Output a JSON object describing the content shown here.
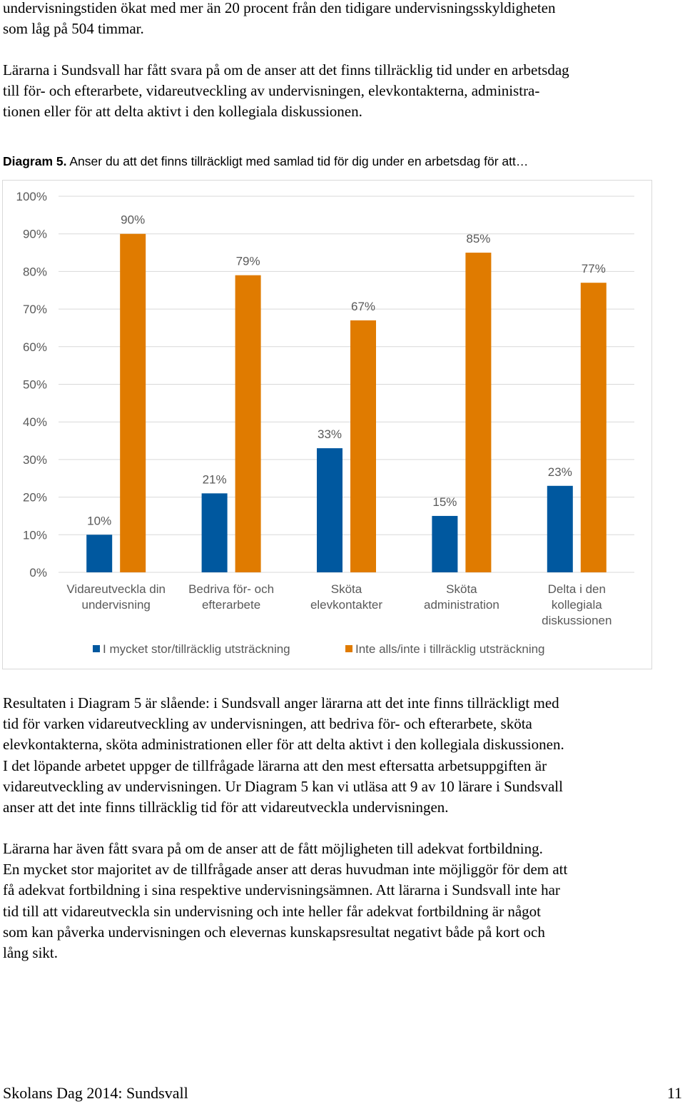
{
  "paragraphs": {
    "intro": "undervisningstiden ökat med mer än 20 procent från den tidigare undervisningsskyldigheten\nsom låg på 504 timmar.",
    "p2": "Lärarna i Sundsvall har fått svara på om de anser att det finns tillräcklig tid under en arbetsdag\ntill för- och efterarbete, vidareutveckling av undervisningen, elevkontakterna, administra-\ntionen eller för att delta aktivt i den kollegiala diskussionen.",
    "p3": "Resultaten i Diagram 5 är slående: i Sundsvall anger lärarna att det inte finns tillräckligt med\ntid för varken vidareutveckling av undervisningen, att bedriva för- och efterarbete, sköta\nelevkontakterna, sköta administrationen eller för att delta aktivt i den kollegiala diskussionen.\nI det löpande arbetet uppger de tillfrågade lärarna att den mest eftersatta arbetsuppgiften är\nvidareutveckling av undervisningen. Ur Diagram 5 kan vi utläsa att 9 av 10 lärare i Sundsvall\nanser att det inte finns tillräcklig tid för att vidareutveckla undervisningen.",
    "p4": "Lärarna har även fått svara på om de anser att de fått möjligheten till adekvat fortbildning.\nEn mycket stor majoritet av de tillfrågade anser att deras huvudman inte möjliggör för dem att\nfå adekvat fortbildning i sina respektive undervisningsämnen. Att lärarna i Sundsvall inte har\ntid till att vidareutveckla sin undervisning och inte heller får adekvat fortbildning är något\nsom kan påverka undervisningen och elevernas kunskapsresultat negativt både på kort och\nlång sikt."
  },
  "caption": {
    "label": "Diagram 5.",
    "text": " Anser du att det finns tillräckligt med samlad tid för dig under en arbetsdag för att…"
  },
  "chart_data": {
    "type": "bar",
    "title": "",
    "categories": [
      [
        "Vidareutveckla din",
        "undervisning"
      ],
      [
        "Bedriva för- och",
        "efterarbete"
      ],
      [
        "Sköta",
        "elevkontakter"
      ],
      [
        "Sköta",
        "administration"
      ],
      [
        "Delta i den",
        "kollegiala",
        "diskussionen"
      ]
    ],
    "series": [
      {
        "name": "I mycket stor/tillräcklig utsträckning",
        "color": "#00589f",
        "values": [
          10,
          21,
          33,
          15,
          23
        ]
      },
      {
        "name": "Inte alls/inte i tillräcklig utsträckning",
        "color": "#e07b00",
        "values": [
          90,
          79,
          67,
          85,
          77
        ]
      }
    ],
    "ylim": [
      0,
      100
    ],
    "yticks": [
      "0%",
      "10%",
      "20%",
      "30%",
      "40%",
      "50%",
      "60%",
      "70%",
      "80%",
      "90%",
      "100%"
    ],
    "value_suffix": "%",
    "grid": true,
    "legend": "bottom",
    "xlabel": "",
    "ylabel": ""
  },
  "footer": {
    "left": "Skolans Dag 2014: Sundsvall",
    "right": "11"
  }
}
